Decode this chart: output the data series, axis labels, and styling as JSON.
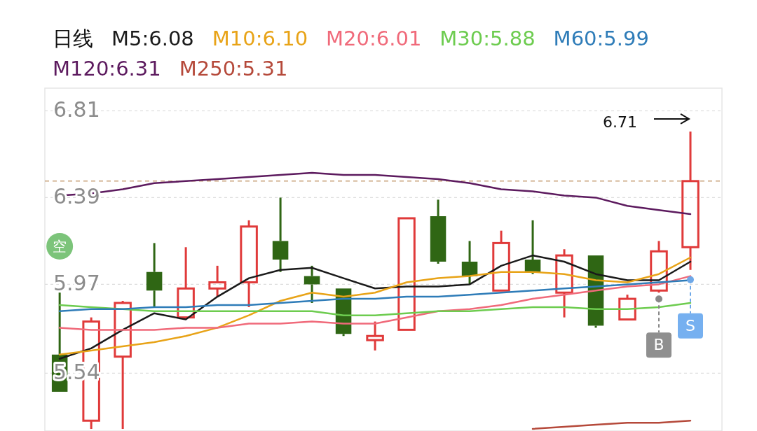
{
  "chart_data": {
    "type": "candlestick",
    "title": "日线",
    "categories": [
      null,
      null,
      null,
      null,
      null,
      null,
      null,
      null,
      null,
      null,
      null,
      null,
      null,
      null,
      null,
      null,
      null,
      null,
      null,
      null,
      null
    ],
    "ohlc": [
      [
        5.63,
        5.93,
        5.45,
        5.45
      ],
      [
        5.31,
        5.81,
        5.27,
        5.79
      ],
      [
        5.62,
        5.89,
        5.27,
        5.88
      ],
      [
        6.03,
        6.17,
        5.86,
        5.94
      ],
      [
        5.81,
        6.15,
        5.81,
        5.95
      ],
      [
        5.95,
        6.06,
        5.91,
        5.98
      ],
      [
        5.98,
        6.28,
        5.86,
        6.25
      ],
      [
        6.18,
        6.39,
        6.03,
        6.09
      ],
      [
        6.01,
        6.06,
        5.88,
        5.97
      ],
      [
        5.95,
        5.95,
        5.72,
        5.73
      ],
      [
        5.7,
        5.79,
        5.65,
        5.72
      ],
      [
        5.75,
        6.29,
        5.75,
        6.29
      ],
      [
        6.3,
        6.38,
        6.07,
        6.08
      ],
      [
        6.08,
        6.18,
        5.97,
        6.01
      ],
      [
        5.94,
        6.23,
        5.94,
        6.17
      ],
      [
        6.09,
        6.28,
        6.02,
        6.03
      ],
      [
        5.93,
        6.14,
        5.81,
        6.11
      ],
      [
        6.11,
        6.11,
        5.76,
        5.77
      ],
      [
        5.8,
        5.92,
        5.8,
        5.9
      ],
      [
        5.94,
        6.18,
        5.93,
        6.13
      ],
      [
        6.15,
        6.71,
        6.04,
        6.47
      ]
    ],
    "colors": [
      "#2f6614",
      "#e03a3a",
      "#e03a3a",
      "#2f6614",
      "#e03a3a",
      "#e03a3a",
      "#e03a3a",
      "#2f6614",
      "#2f6614",
      "#2f6614",
      "#e03a3a",
      "#e03a3a",
      "#2f6614",
      "#2f6614",
      "#e03a3a",
      "#2f6614",
      "#e03a3a",
      "#2f6614",
      "#e03a3a",
      "#e03a3a",
      "#e03a3a"
    ],
    "series": [
      {
        "type": "line",
        "name": "M5:6.08",
        "color": "#1a1a1a",
        "values": [
          5.61,
          5.66,
          5.75,
          5.83,
          5.8,
          5.91,
          6.0,
          6.04,
          6.05,
          6.0,
          5.95,
          5.96,
          5.96,
          5.97,
          6.06,
          6.11,
          6.08,
          6.02,
          5.99,
          5.99,
          6.08
        ]
      },
      {
        "type": "line",
        "name": "M10:6.10",
        "color": "#e8a317",
        "values": [
          5.63,
          5.65,
          5.67,
          5.69,
          5.72,
          5.76,
          5.82,
          5.89,
          5.93,
          5.91,
          5.93,
          5.98,
          6.0,
          6.01,
          6.03,
          6.03,
          6.02,
          5.99,
          5.98,
          6.02,
          6.1
        ]
      },
      {
        "type": "line",
        "name": "M20:6.01",
        "color": "#f06a7a",
        "values": [
          5.76,
          5.75,
          5.75,
          5.75,
          5.76,
          5.76,
          5.78,
          5.78,
          5.79,
          5.78,
          5.78,
          5.81,
          5.84,
          5.85,
          5.87,
          5.9,
          5.92,
          5.94,
          5.96,
          5.97,
          6.01
        ]
      },
      {
        "type": "line",
        "name": "M30:5.88",
        "color": "#6dcc4f",
        "values": [
          5.87,
          5.86,
          5.85,
          5.84,
          5.84,
          5.84,
          5.84,
          5.84,
          5.84,
          5.82,
          5.82,
          5.83,
          5.84,
          5.84,
          5.85,
          5.86,
          5.86,
          5.85,
          5.85,
          5.86,
          5.88
        ]
      },
      {
        "type": "line",
        "name": "M60:5.99",
        "color": "#2e7cb8",
        "values": [
          5.84,
          5.85,
          5.85,
          5.86,
          5.86,
          5.87,
          5.87,
          5.88,
          5.89,
          5.9,
          5.9,
          5.91,
          5.91,
          5.92,
          5.93,
          5.94,
          5.95,
          5.96,
          5.97,
          5.98,
          5.99
        ]
      },
      {
        "type": "line",
        "name": "M120:6.31",
        "color": "#5c1a5e",
        "values": [
          6.4,
          6.41,
          6.43,
          6.46,
          6.47,
          6.48,
          6.49,
          6.5,
          6.51,
          6.5,
          6.5,
          6.49,
          6.48,
          6.46,
          6.43,
          6.42,
          6.4,
          6.39,
          6.35,
          6.33,
          6.31
        ]
      },
      {
        "type": "line",
        "name": "M250:5.31",
        "color": "#b5493a",
        "values": [
          null,
          null,
          null,
          null,
          null,
          null,
          null,
          null,
          null,
          null,
          null,
          null,
          null,
          null,
          null,
          5.27,
          5.28,
          5.29,
          5.3,
          5.3,
          5.31
        ]
      }
    ],
    "ylim": [
      5.26,
      6.92
    ],
    "yticks": [
      5.54,
      5.97,
      6.39,
      6.81
    ],
    "grid": "y",
    "legend": "top",
    "tick_labels": "y",
    "ref_lines": [
      {
        "axis": "y",
        "value": 6.47,
        "color": "#c9a27a",
        "line_style": "dashed"
      }
    ],
    "annotations": [
      "6.71",
      "B",
      "S",
      "空"
    ]
  }
}
